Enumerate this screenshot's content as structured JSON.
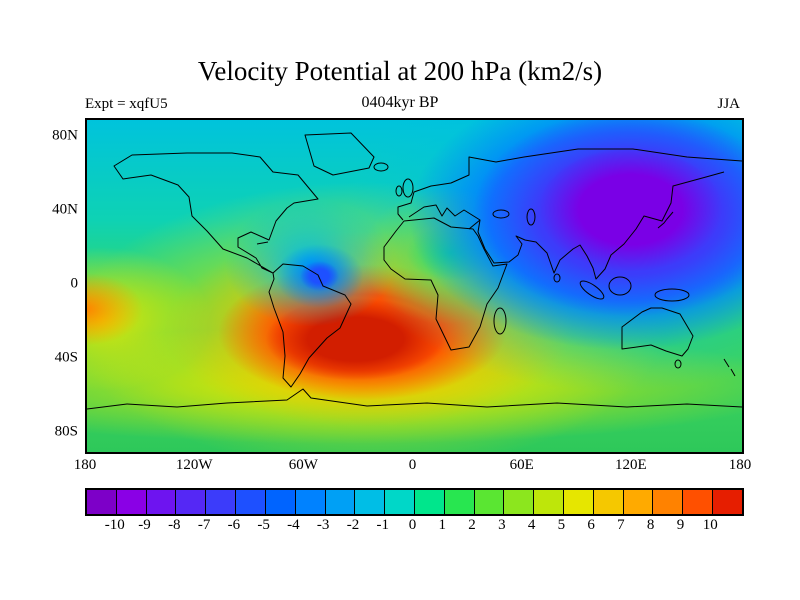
{
  "figure": {
    "title": "Velocity Potential at 200 hPa (km2/s)",
    "subtitle": "0404kyr BP",
    "experiment_label": "Expt = xqfU5",
    "season_label": "JJA"
  },
  "axes": {
    "y_tick_labels": [
      "80N",
      "40N",
      "0",
      "40S",
      "80S"
    ],
    "y_tick_lats": [
      80,
      40,
      0,
      -40,
      -80
    ],
    "x_tick_labels": [
      "180",
      "120W",
      "60W",
      "0",
      "60E",
      "120E",
      "180"
    ],
    "x_tick_lons": [
      -180,
      -120,
      -60,
      0,
      60,
      120,
      180
    ]
  },
  "colorbar": {
    "labels": [
      "-10",
      "-9",
      "-8",
      "-7",
      "-6",
      "-5",
      "-4",
      "-3",
      "-2",
      "-1",
      "0",
      "1",
      "2",
      "3",
      "4",
      "5",
      "6",
      "7",
      "8",
      "9",
      "10"
    ],
    "colors": [
      "#7D00C8",
      "#8A00E6",
      "#6E14F0",
      "#5528F5",
      "#3C3CFA",
      "#1E50FF",
      "#0064FF",
      "#0082FF",
      "#00A0F5",
      "#00BEE6",
      "#00D7C8",
      "#00E68C",
      "#28E650",
      "#5AE632",
      "#8CE61E",
      "#BEE60A",
      "#E6E600",
      "#F5C800",
      "#FFAA00",
      "#FF8200",
      "#FF5000",
      "#E61E00"
    ]
  },
  "chart_data": {
    "type": "heatmap",
    "title": "Velocity Potential at 200 hPa (km2/s)",
    "subtitle": "0404kyr BP",
    "annotations": [
      "Expt = xqfU5",
      "JJA"
    ],
    "units": "km2/s",
    "xlabel": "longitude",
    "ylabel": "latitude",
    "x_range": [
      -180,
      180
    ],
    "y_range": [
      -90,
      90
    ],
    "contour_levels": [
      -10,
      -9,
      -8,
      -7,
      -6,
      -5,
      -4,
      -3,
      -2,
      -1,
      0,
      1,
      2,
      3,
      4,
      5,
      6,
      7,
      8,
      9,
      10
    ],
    "palette": "rainbow, purple (negative) to red (positive)",
    "grid": {
      "lons": [
        -180,
        -120,
        -60,
        0,
        60,
        120,
        180
      ],
      "lats": [
        80,
        40,
        0,
        -40,
        -80
      ],
      "values": [
        [
          -2,
          -3,
          -2,
          -2,
          -3,
          -5,
          -4
        ],
        [
          -4,
          -2,
          -1,
          1,
          -2,
          -9,
          -8
        ],
        [
          -1,
          -3,
          3,
          4,
          2,
          -6,
          -4
        ],
        [
          3,
          5,
          9,
          10,
          6,
          2,
          2
        ],
        [
          1,
          2,
          2,
          2,
          2,
          1,
          1
        ]
      ]
    },
    "features": [
      {
        "description": "broad minimum, about -10",
        "lon": 120,
        "lat": 30
      },
      {
        "description": "broad maximum, about +10",
        "lon": -30,
        "lat": -30
      },
      {
        "description": "local minimum, about -6",
        "lon": -55,
        "lat": 3
      }
    ]
  }
}
